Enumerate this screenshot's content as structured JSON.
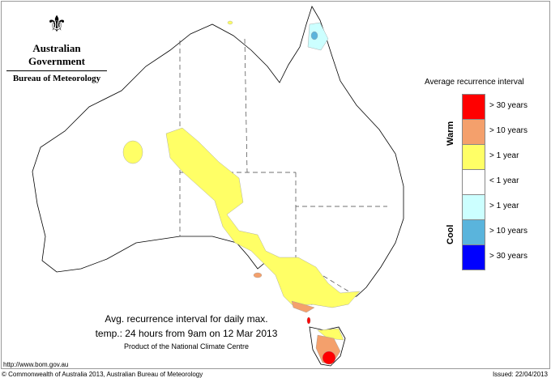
{
  "header": {
    "org": "Australian Government",
    "agency": "Bureau of Meteorology"
  },
  "legend": {
    "title": "Average recurrence interval",
    "warm_label": "Warm",
    "cool_label": "Cool",
    "items": [
      {
        "label": "> 30 years",
        "color": "#ff0000"
      },
      {
        "label": "> 10 years",
        "color": "#f4a06c"
      },
      {
        "label": "> 1 year",
        "color": "#ffff66"
      },
      {
        "label": "< 1 year",
        "color": "#ffffff"
      },
      {
        "label": "> 1 year",
        "color": "#ccffff"
      },
      {
        "label": "> 10 years",
        "color": "#5ab4dc"
      },
      {
        "label": "> 30 years",
        "color": "#0000ff"
      }
    ]
  },
  "caption": {
    "line1": "Avg. recurrence interval for daily max.",
    "line2": "temp.: 24 hours from 9am on 12 Mar 2013",
    "line3": "Product of the National Climate Centre"
  },
  "footer": {
    "url": "http://www.bom.gov.au",
    "copyright": "© Commonwealth of Australia 2013, Australian Bureau of Meteorology",
    "issued": "Issued: 22/04/2013"
  }
}
